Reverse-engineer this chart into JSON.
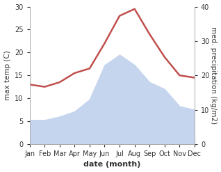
{
  "months": [
    "Jan",
    "Feb",
    "Mar",
    "Apr",
    "May",
    "Jun",
    "Jul",
    "Aug",
    "Sep",
    "Oct",
    "Nov",
    "Dec"
  ],
  "month_indices": [
    1,
    2,
    3,
    4,
    5,
    6,
    7,
    8,
    9,
    10,
    11,
    12
  ],
  "temperature": [
    13.0,
    12.5,
    13.5,
    15.5,
    16.5,
    22.0,
    28.0,
    29.5,
    24.0,
    19.0,
    15.0,
    14.5
  ],
  "precipitation": [
    7.0,
    7.0,
    8.0,
    9.5,
    13.0,
    23.0,
    26.0,
    23.0,
    18.0,
    16.0,
    11.0,
    10.0
  ],
  "temp_color": "#c0504d",
  "precip_color": "#c5d5ee",
  "temp_ylim": [
    0,
    30
  ],
  "precip_ylim": [
    0,
    40
  ],
  "temp_yticks": [
    0,
    5,
    10,
    15,
    20,
    25,
    30
  ],
  "precip_yticks": [
    0,
    10,
    20,
    30,
    40
  ],
  "ylabel_left": "max temp (C)",
  "ylabel_right": "med. precipitation (kg/m2)",
  "xlabel": "date (month)",
  "bg_color": "#ffffff",
  "spine_color": "#aaaaaa",
  "tick_color": "#333333",
  "label_fontsize": 7,
  "xlabel_fontsize": 8,
  "ylabel_fontsize": 7.5,
  "temp_linewidth": 1.8
}
